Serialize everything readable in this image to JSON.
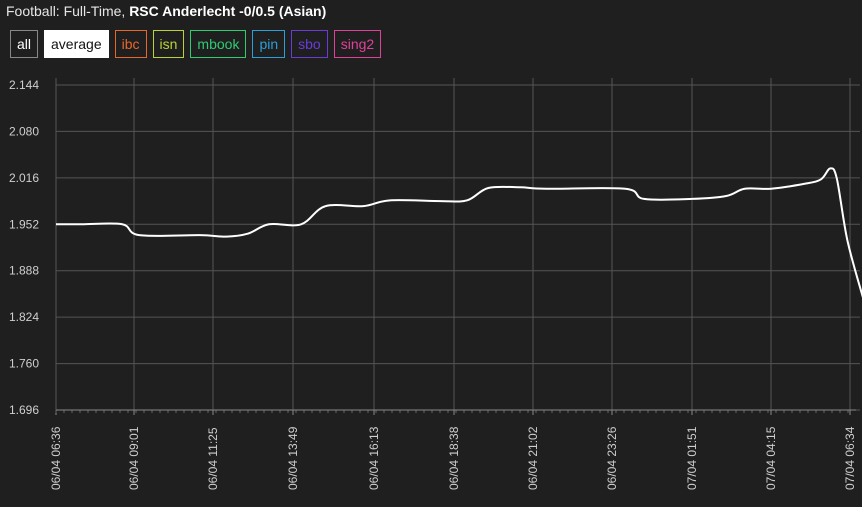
{
  "header": {
    "title_prefix": "Football: Full-Time,",
    "title_main": "RSC Anderlecht -0/0.5 (Asian)"
  },
  "buttons": [
    {
      "name": "all",
      "label": "all",
      "color": "#ffffff",
      "active": false
    },
    {
      "name": "average",
      "label": "average",
      "color": "#111111",
      "active": true
    },
    {
      "name": "ibc",
      "label": "ibc",
      "color": "#e8662a",
      "active": false
    },
    {
      "name": "isn",
      "label": "isn",
      "color": "#b8d433",
      "active": false
    },
    {
      "name": "mbook",
      "label": "mbook",
      "color": "#2ecc71",
      "active": false
    },
    {
      "name": "pin",
      "label": "pin",
      "color": "#2a9fd8",
      "active": false
    },
    {
      "name": "sbo",
      "label": "sbo",
      "color": "#6a3bd8",
      "active": false
    },
    {
      "name": "sing2",
      "label": "sing2",
      "color": "#e0409a",
      "active": false
    }
  ],
  "chart_data": {
    "type": "line",
    "y_ticks": [
      "2.144",
      "2.080",
      "2.016",
      "1.952",
      "1.888",
      "1.824",
      "1.760",
      "1.696"
    ],
    "ylim": [
      1.696,
      2.144
    ],
    "x_ticks": [
      "06/04 06:36",
      "06/04 09:01",
      "06/04 11:25",
      "06/04 13:49",
      "06/04 16:13",
      "06/04 18:38",
      "06/04 21:02",
      "06/04 23:26",
      "07/04 01:51",
      "07/04 04:15",
      "07/04 06:34"
    ],
    "grid": true,
    "series": [
      {
        "color": "#ffffff",
        "points": [
          [
            0,
            1.952
          ],
          [
            1,
            1.952
          ],
          [
            2.55,
            1.952
          ],
          [
            3.2,
            1.937
          ],
          [
            5.5,
            1.937
          ],
          [
            6.5,
            1.935
          ],
          [
            7.3,
            1.939
          ],
          [
            8.1,
            1.952
          ],
          [
            9.3,
            1.952
          ],
          [
            10.2,
            1.977
          ],
          [
            11.6,
            1.977
          ],
          [
            12.6,
            1.985
          ],
          [
            14.5,
            1.984
          ],
          [
            15.5,
            1.985
          ],
          [
            16.3,
            2.002
          ],
          [
            17.5,
            2.003
          ],
          [
            18.5,
            2.001
          ],
          [
            21.5,
            2.001
          ],
          [
            22.2,
            1.987
          ],
          [
            24,
            1.987
          ],
          [
            25.3,
            1.991
          ],
          [
            26,
            2.001
          ],
          [
            27,
            2.001
          ],
          [
            28.3,
            2.008
          ],
          [
            28.9,
            2.014
          ],
          [
            29.25,
            2.029
          ],
          [
            29.5,
            2.015
          ],
          [
            29.9,
            1.93
          ],
          [
            30.5,
            1.85
          ]
        ]
      }
    ]
  }
}
